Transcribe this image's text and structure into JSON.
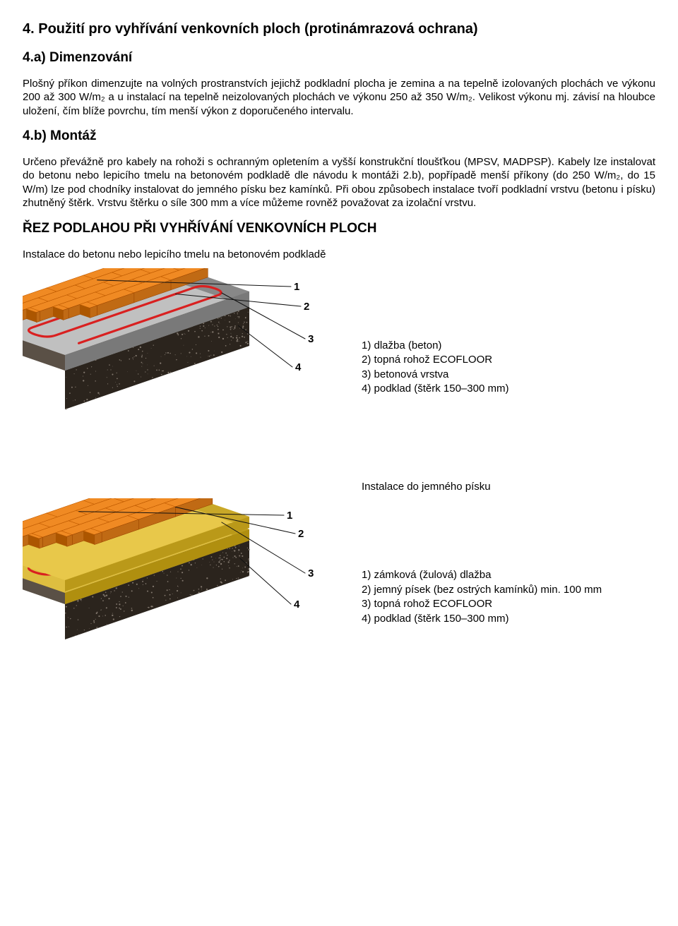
{
  "title_main": "4. Použití pro vyhřívání venkovních ploch (protinámrazová ochrana)",
  "sec_a_title": "4.a) Dimenzování",
  "sec_a_para": "Plošný příkon dimenzujte na volných prostranstvích jejichž podkladní plocha je zemina a na tepelně izolovaných plochách ve výkonu 200 až 300 W/m₂ a u instalací na tepelně neizolovaných plochách ve výkonu 250 až 350 W/m₂. Velikost výkonu mj. závisí na hloubce uložení, čím blíže povrchu, tím menší výkon z doporučeného intervalu.",
  "sec_b_title": "4.b) Montáž",
  "sec_b_para": "Určeno převážně pro kabely na rohoži s ochranným opletením a vyšší konstrukční tloušťkou (MPSV, MADPSP). Kabely lze instalovat do betonu nebo lepicího tmelu na betonovém podkladě dle návodu k montáži 2.b), popřípadě menší příkony (do 250 W/m₂, do 15 W/m) lze pod chodníky instalovat do jemného písku bez kamínků. Při obou způsobech instalace tvoří podkladní vrstvu (betonu i písku) zhutněný štěrk. Vrstvu štěrku o síle 300 mm a více můžeme rovněž považovat za izolační vrstvu.",
  "cross_section_title": "ŘEZ PODLAHOU PŘI VYHŘÍVÁNÍ VENKOVNÍCH PLOCH",
  "install_concrete_caption": "Instalace do betonu nebo lepicího tmelu na betonovém podkladě",
  "install_sand_caption": "Instalace do jemného písku",
  "legend_concrete": {
    "l1": "1) dlažba (beton)",
    "l2": "2) topná rohož ECOFLOOR",
    "l3": "3) betonová vrstva",
    "l4": "4) podklad (štěrk 150–300 mm)"
  },
  "legend_sand": {
    "l1": "1) zámková (žulová) dlažba",
    "l2": "2) jemný písek (bez ostrých kamínků) min. 100 mm",
    "l3": "3) topná rohož ECOFLOOR",
    "l4": "4) podklad (štěrk 150–300 mm)"
  },
  "diagram_concrete": {
    "num_labels": [
      "1",
      "2",
      "3",
      "4"
    ],
    "colors": {
      "tile_top": "#f08a23",
      "tile_side": "#c06a14",
      "tile_shadow": "#8a4a0c",
      "heating_mat": "#d92020",
      "concrete_top": "#c0c0c0",
      "concrete_side": "#888888",
      "gravel_top": "#5a5046",
      "gravel_side": "#3a332c",
      "line": "#111111"
    }
  },
  "diagram_sand": {
    "num_labels": [
      "1",
      "2",
      "3",
      "4"
    ],
    "colors": {
      "tile_top": "#f08a23",
      "tile_side": "#c06a14",
      "sand_top": "#e8c84a",
      "sand_side": "#c9a828",
      "heating_mat": "#d92020",
      "gravel_top": "#5a5046",
      "gravel_side": "#3a332c",
      "line": "#111111"
    }
  }
}
